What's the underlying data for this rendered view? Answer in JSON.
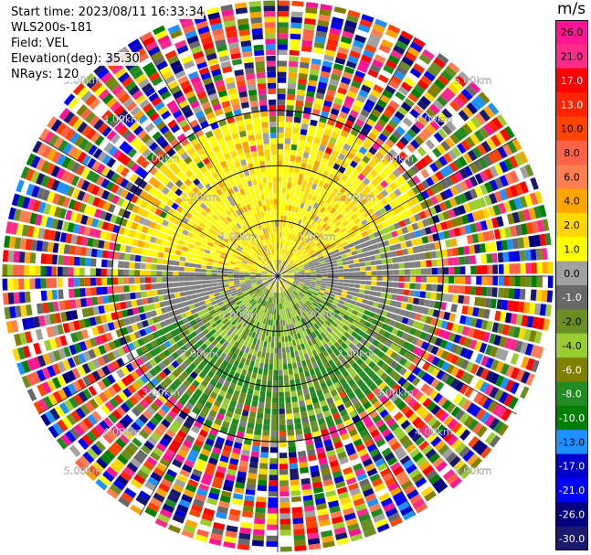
{
  "info": {
    "start_time": "Start time: 2023/08/11 16:33:34",
    "instrument": "WLS200s-181",
    "field": "Field: VEL",
    "elevation": "Elevation(deg): 35.30",
    "nrays": "NRays: 120"
  },
  "colorbar": {
    "unit": "m/s",
    "ticks": [
      "26.0",
      "21.0",
      "17.0",
      "13.0",
      "10.0",
      "8.0",
      "6.0",
      "4.0",
      "2.0",
      "1.0",
      "0.0",
      "-1.0",
      "-2.0",
      "-4.0",
      "-6.0",
      "-8.0",
      "-10.0",
      "-13.0",
      "-17.0",
      "-21.0",
      "-26.0",
      "-30.0"
    ],
    "colors": [
      "#ff1493",
      "#ff2a8a",
      "#ff0000",
      "#ff2400",
      "#ff4500",
      "#ff6347",
      "#ff7f50",
      "#ffa500",
      "#ffd700",
      "#ffff00",
      "#a0a0a0",
      "#696969",
      "#6b8e23",
      "#9acd32",
      "#808000",
      "#228b22",
      "#008000",
      "#1e90ff",
      "#0000cd",
      "#0000ff",
      "#000080",
      "#191970"
    ]
  },
  "chart_data": {
    "type": "ppi",
    "title": "",
    "ring_labels": [
      "1.00km",
      "2.00km",
      "3.00km",
      "4.00km",
      "5.00km"
    ],
    "max_range_km": 5.0,
    "n_rays": 120,
    "elevation_deg": 35.3,
    "velocity_pattern": {
      "inner_north": "2.0 to 4.0 m/s (yellow)",
      "inner_south": "-1.0 to -6.0 m/s (olive/green)",
      "east_west_strip": "0.0 m/s (gray)",
      "outer_ring": "noise, all velocities"
    }
  }
}
